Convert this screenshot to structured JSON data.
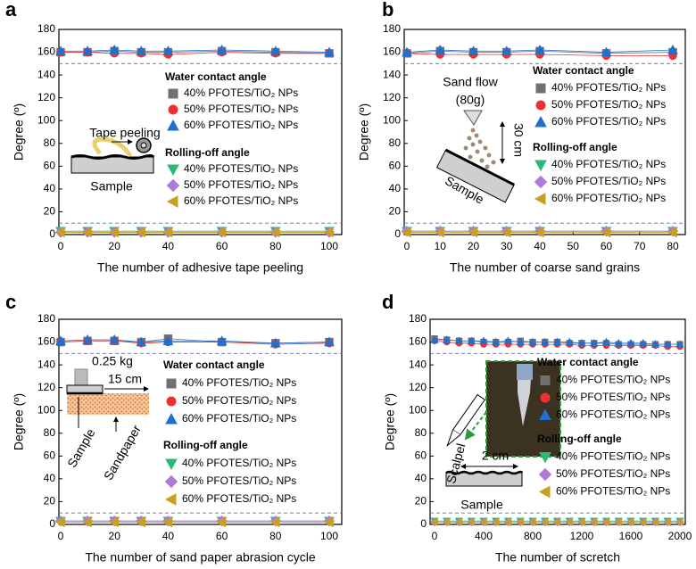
{
  "chart_data": [
    {
      "type": "line",
      "label": "a",
      "xlabel": "The number of adhesive tape peeling",
      "ylabel": "Degree (º)",
      "x": [
        0,
        10,
        20,
        30,
        40,
        60,
        80,
        100
      ],
      "xlim": [
        0,
        100
      ],
      "xticks": [
        0,
        20,
        40,
        60,
        80,
        100
      ],
      "ylim": [
        0,
        180
      ],
      "yticks": [
        0,
        20,
        40,
        60,
        80,
        100,
        120,
        140,
        160,
        180
      ],
      "hlines": [
        150,
        10
      ],
      "groups": [
        {
          "title": "Water contact angle",
          "series": [
            {
              "name": "40% PFOTES/TiO₂ NPs",
              "color": "#707070",
              "marker": "square",
              "values": [
                160,
                160,
                161,
                160,
                160,
                161,
                160,
                159
              ]
            },
            {
              "name": "50% PFOTES/TiO₂ NPs",
              "color": "#f03030",
              "marker": "circle",
              "values": [
                160,
                160,
                159,
                159,
                158,
                160,
                159,
                159
              ]
            },
            {
              "name": "60% PFOTES/TiO₂ NPs",
              "color": "#2070d0",
              "marker": "triangle-up",
              "values": [
                161,
                161,
                162,
                161,
                161,
                162,
                161,
                160
              ]
            }
          ]
        },
        {
          "title": "Rolling-off angle",
          "series": [
            {
              "name": "40% PFOTES/TiO₂ NPs",
              "color": "#2db87a",
              "marker": "triangle-down",
              "values": [
                3,
                3,
                3,
                3,
                3,
                3,
                3,
                3
              ]
            },
            {
              "name": "50% PFOTES/TiO₂ NPs",
              "color": "#b07ad8",
              "marker": "diamond",
              "values": [
                2,
                2,
                2,
                2,
                2,
                2,
                2,
                2
              ]
            },
            {
              "name": "60% PFOTES/TiO₂ NPs",
              "color": "#c8a020",
              "marker": "triangle-left",
              "values": [
                2,
                2,
                2,
                2,
                2,
                2,
                2,
                2
              ]
            }
          ]
        }
      ],
      "annotations": [
        "Tape peeling",
        "Sample"
      ]
    },
    {
      "type": "line",
      "label": "b",
      "xlabel": "The number of coarse sand grains",
      "ylabel": "Degree (º)",
      "x": [
        0,
        10,
        20,
        30,
        40,
        60,
        80
      ],
      "xlim": [
        0,
        80
      ],
      "xticks": [
        0,
        10,
        20,
        30,
        40,
        50,
        60,
        70,
        80
      ],
      "ylim": [
        0,
        180
      ],
      "yticks": [
        0,
        20,
        40,
        60,
        80,
        100,
        120,
        140,
        160,
        180
      ],
      "hlines": [
        150,
        10
      ],
      "groups": [
        {
          "title": "Water contact angle",
          "series": [
            {
              "name": "40% PFOTES/TiO₂ NPs",
              "color": "#707070",
              "marker": "square",
              "values": [
                159,
                161,
                160,
                160,
                161,
                159,
                160
              ]
            },
            {
              "name": "50% PFOTES/TiO₂ NPs",
              "color": "#f03030",
              "marker": "circle",
              "values": [
                159,
                158,
                158,
                158,
                158,
                157,
                157
              ]
            },
            {
              "name": "60% PFOTES/TiO₂ NPs",
              "color": "#2070d0",
              "marker": "triangle-up",
              "values": [
                160,
                162,
                161,
                161,
                162,
                160,
                162
              ]
            }
          ]
        },
        {
          "title": "Rolling-off angle",
          "series": [
            {
              "name": "40% PFOTES/TiO₂ NPs",
              "color": "#2db87a",
              "marker": "triangle-down",
              "values": [
                3,
                3,
                3,
                3,
                3,
                3,
                3
              ]
            },
            {
              "name": "50% PFOTES/TiO₂ NPs",
              "color": "#b07ad8",
              "marker": "diamond",
              "values": [
                3,
                3,
                3,
                3,
                3,
                3,
                3
              ]
            },
            {
              "name": "60% PFOTES/TiO₂ NPs",
              "color": "#c8a020",
              "marker": "triangle-left",
              "values": [
                2,
                2,
                2,
                2,
                2,
                2,
                2
              ]
            }
          ]
        }
      ],
      "annotations": [
        "Sand flow",
        "(80g)",
        "30 cm",
        "Sample"
      ]
    },
    {
      "type": "line",
      "label": "c",
      "xlabel": "The number of sand paper abrasion cycle",
      "ylabel": "Degree (º)",
      "x": [
        0,
        10,
        20,
        30,
        40,
        60,
        80,
        100
      ],
      "xlim": [
        0,
        100
      ],
      "xticks": [
        0,
        20,
        40,
        60,
        80,
        100
      ],
      "ylim": [
        0,
        180
      ],
      "yticks": [
        0,
        20,
        40,
        60,
        80,
        100,
        120,
        140,
        160,
        180
      ],
      "hlines": [
        150,
        10
      ],
      "groups": [
        {
          "title": "Water contact angle",
          "series": [
            {
              "name": "40% PFOTES/TiO₂ NPs",
              "color": "#707070",
              "marker": "square",
              "values": [
                160,
                161,
                161,
                160,
                163,
                160,
                159,
                160
              ]
            },
            {
              "name": "50% PFOTES/TiO₂ NPs",
              "color": "#f03030",
              "marker": "circle",
              "values": [
                160,
                161,
                161,
                159,
                160,
                160,
                158,
                159
              ]
            },
            {
              "name": "60% PFOTES/TiO₂ NPs",
              "color": "#2070d0",
              "marker": "triangle-up",
              "values": [
                161,
                162,
                162,
                160,
                161,
                161,
                159,
                160
              ]
            }
          ]
        },
        {
          "title": "Rolling-off angle",
          "series": [
            {
              "name": "40% PFOTES/TiO₂ NPs",
              "color": "#2db87a",
              "marker": "triangle-down",
              "values": [
                3,
                3,
                3,
                3,
                3,
                3,
                3,
                3
              ]
            },
            {
              "name": "50% PFOTES/TiO₂ NPs",
              "color": "#b07ad8",
              "marker": "diamond",
              "values": [
                3,
                3,
                3,
                3,
                3,
                3,
                3,
                3
              ]
            },
            {
              "name": "60% PFOTES/TiO₂ NPs",
              "color": "#c8a020",
              "marker": "triangle-left",
              "values": [
                2,
                2,
                2,
                2,
                2,
                2,
                2,
                2
              ]
            }
          ]
        }
      ],
      "annotations": [
        "0.25 kg",
        "15 cm",
        "Sample",
        "Sandpaper"
      ]
    },
    {
      "type": "line",
      "label": "d",
      "xlabel": "The number of scretch",
      "ylabel": "Degree (º)",
      "x": [
        0,
        100,
        200,
        300,
        400,
        500,
        600,
        700,
        800,
        900,
        1000,
        1100,
        1200,
        1300,
        1400,
        1500,
        1600,
        1700,
        1800,
        1900,
        2000
      ],
      "xlim": [
        0,
        2000
      ],
      "xticks": [
        0,
        400,
        800,
        1200,
        1600,
        2000
      ],
      "ylim": [
        0,
        180
      ],
      "yticks": [
        0,
        20,
        40,
        60,
        80,
        100,
        120,
        140,
        160,
        180
      ],
      "hlines": [
        150,
        10
      ],
      "groups": [
        {
          "title": "Water contact angle",
          "series": [
            {
              "name": "40% PFOTES/TiO₂ NPs",
              "color": "#707070",
              "marker": "square",
              "values": [
                163,
                162,
                161,
                161,
                160,
                160,
                160,
                161,
                160,
                160,
                160,
                159,
                159,
                159,
                159,
                158,
                158,
                158,
                158,
                158,
                158
              ]
            },
            {
              "name": "50% PFOTES/TiO₂ NPs",
              "color": "#f03030",
              "marker": "circle",
              "values": [
                161,
                160,
                159,
                159,
                158,
                158,
                158,
                158,
                158,
                158,
                158,
                158,
                157,
                157,
                157,
                157,
                157,
                157,
                157,
                156,
                156
              ]
            },
            {
              "name": "60% PFOTES/TiO₂ NPs",
              "color": "#2070d0",
              "marker": "triangle-up",
              "values": [
                162,
                162,
                161,
                161,
                161,
                160,
                161,
                160,
                160,
                160,
                160,
                160,
                159,
                159,
                160,
                159,
                159,
                159,
                158,
                158,
                158
              ]
            }
          ]
        },
        {
          "title": "Rolling-off angle",
          "series": [
            {
              "name": "40% PFOTES/TiO₂ NPs",
              "color": "#2db87a",
              "marker": "triangle-down",
              "values": [
                3,
                3,
                3,
                3,
                3,
                3,
                3,
                3,
                3,
                3,
                3,
                3,
                3,
                3,
                3,
                3,
                3,
                3,
                3,
                3,
                3
              ]
            },
            {
              "name": "50% PFOTES/TiO₂ NPs",
              "color": "#b07ad8",
              "marker": "diamond",
              "values": [
                2,
                2,
                2,
                2,
                2,
                2,
                2,
                2,
                2,
                2,
                2,
                2,
                2,
                2,
                2,
                2,
                2,
                2,
                2,
                2,
                2
              ]
            },
            {
              "name": "60% PFOTES/TiO₂ NPs",
              "color": "#c8a020",
              "marker": "triangle-left",
              "values": [
                2,
                2,
                2,
                2,
                2,
                2,
                2,
                2,
                2,
                2,
                2,
                2,
                2,
                2,
                2,
                2,
                2,
                2,
                2,
                2,
                2
              ]
            }
          ]
        }
      ],
      "annotations": [
        "Scalpel",
        "2 cm",
        "Sample"
      ]
    }
  ]
}
